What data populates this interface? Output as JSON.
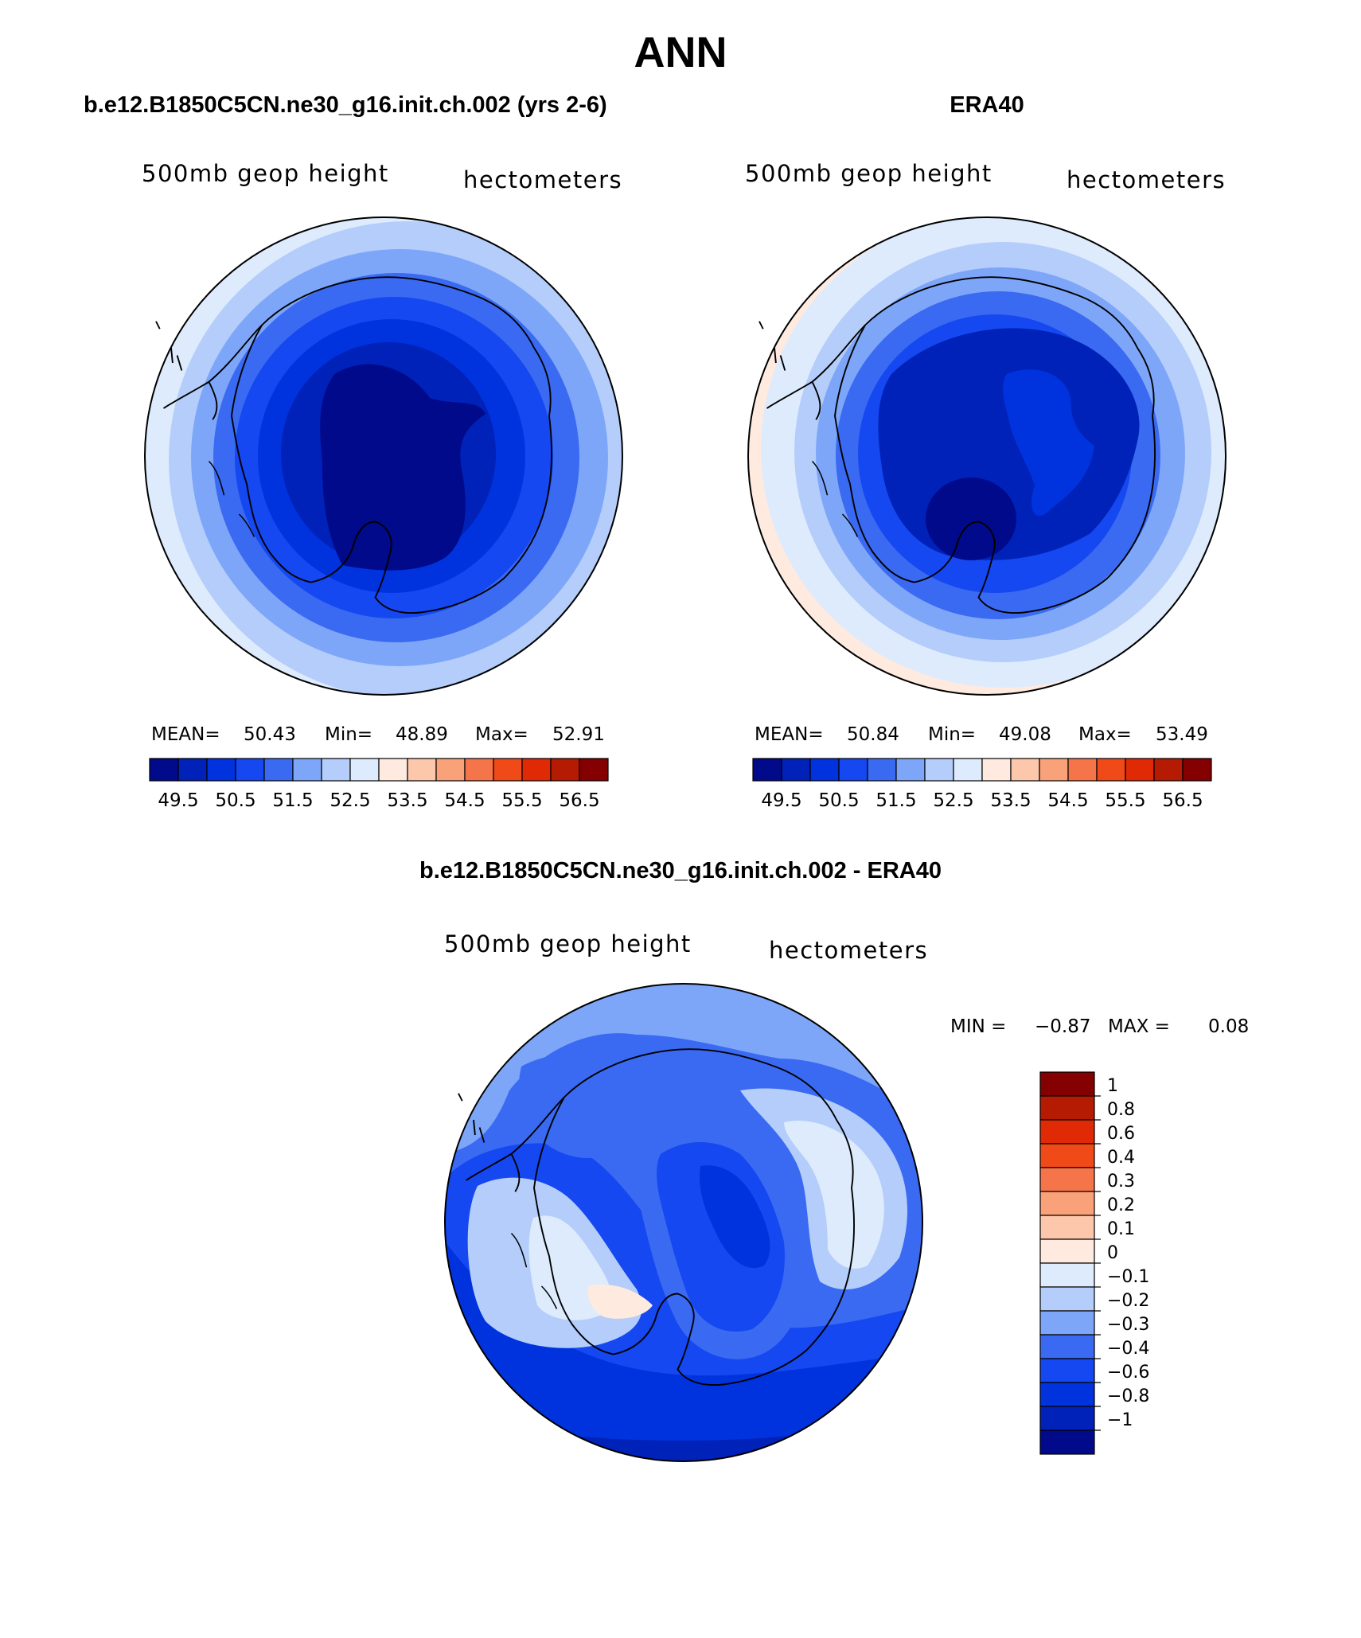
{
  "page_title": "ANN",
  "colors": {
    "abs_levels": [
      "#000a8a",
      "#0022b8",
      "#0033dd",
      "#1548f0",
      "#3a6af2",
      "#7ea6f8",
      "#b4cdfb",
      "#ddebfd",
      "#feeadf",
      "#fdc7ac",
      "#f9a27a",
      "#f6744a",
      "#f04a18",
      "#e02a06",
      "#b51a02",
      "#850000"
    ],
    "diff_levels": [
      "#000a8a",
      "#0022b8",
      "#0033dd",
      "#1548f0",
      "#3a6af2",
      "#7ea6f8",
      "#b4cdfb",
      "#ddebfd",
      "#feeadf",
      "#fdc7ac",
      "#f9a27a",
      "#f6744a",
      "#f04a18",
      "#e02a06",
      "#b51a02",
      "#850000"
    ]
  },
  "chart_data": [
    {
      "type": "heatmap",
      "projection": "south polar stereographic",
      "title": "b.e12.B1850C5CN.ne30_g16.init.ch.002 (yrs 2-6)",
      "field_label": "500mb geop height",
      "units_label": "hectometers",
      "stats": {
        "mean_label": "MEAN=",
        "mean": "50.43",
        "min_label": "Min=",
        "min": "48.89",
        "max_label": "Max=",
        "max": "52.91"
      },
      "colorbar_ticks": [
        "49.5",
        "50.5",
        "51.5",
        "52.5",
        "53.5",
        "54.5",
        "55.5",
        "56.5"
      ],
      "colorbar_levels": [
        49,
        49.5,
        50,
        50.5,
        51,
        51.5,
        52,
        52.5,
        53,
        53.5,
        54,
        54.5,
        55,
        55.5,
        56,
        56.5
      ]
    },
    {
      "type": "heatmap",
      "projection": "south polar stereographic",
      "title": "ERA40",
      "field_label": "500mb geop height",
      "units_label": "hectometers",
      "stats": {
        "mean_label": "MEAN=",
        "mean": "50.84",
        "min_label": "Min=",
        "min": "49.08",
        "max_label": "Max=",
        "max": "53.49"
      },
      "colorbar_ticks": [
        "49.5",
        "50.5",
        "51.5",
        "52.5",
        "53.5",
        "54.5",
        "55.5",
        "56.5"
      ],
      "colorbar_levels": [
        49,
        49.5,
        50,
        50.5,
        51,
        51.5,
        52,
        52.5,
        53,
        53.5,
        54,
        54.5,
        55,
        55.5,
        56,
        56.5
      ]
    },
    {
      "type": "heatmap",
      "projection": "south polar stereographic",
      "title": "b.e12.B1850C5CN.ne30_g16.init.ch.002 - ERA40",
      "field_label": "500mb geop height",
      "units_label": "hectometers",
      "stats": {
        "min_label": "MIN =",
        "min": "−0.87",
        "max_label": "MAX =",
        "max": "0.08"
      },
      "colorbar_ticks": [
        "1",
        "0.8",
        "0.6",
        "0.4",
        "0.3",
        "0.2",
        "0.1",
        "0",
        "−0.1",
        "−0.2",
        "−0.3",
        "−0.4",
        "−0.6",
        "−0.8",
        "−1"
      ]
    }
  ]
}
